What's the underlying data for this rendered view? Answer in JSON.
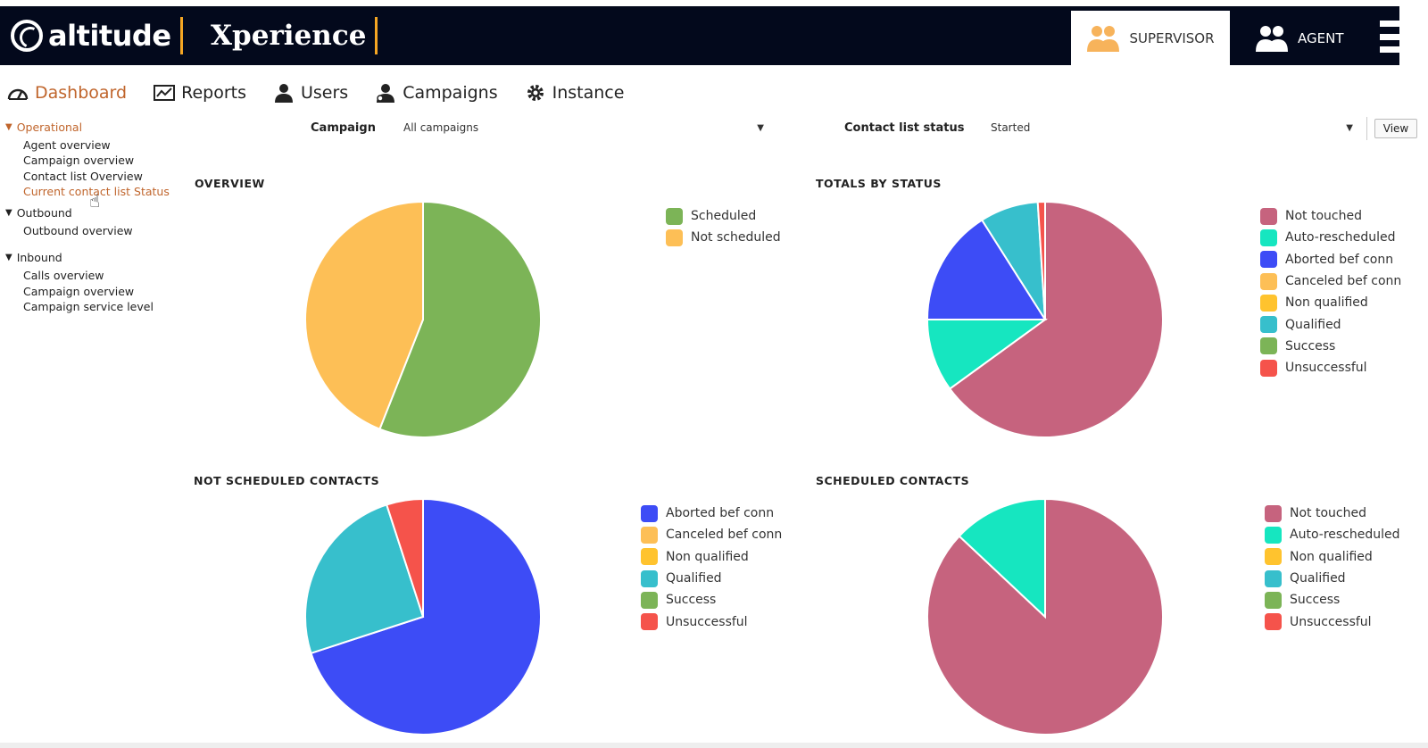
{
  "brand": {
    "logo_text": "altitude",
    "product": "Xperience"
  },
  "roles": {
    "supervisor": "SUPERVISOR",
    "agent": "AGENT"
  },
  "nav": {
    "dashboard": "Dashboard",
    "reports": "Reports",
    "users": "Users",
    "campaigns": "Campaigns",
    "instance": "Instance"
  },
  "sidebar": {
    "operational": {
      "label": "Operational",
      "items": [
        "Agent overview",
        "Campaign overview",
        "Contact list Overview",
        "Current contact list Status"
      ]
    },
    "outbound": {
      "label": "Outbound",
      "items": [
        "Outbound overview"
      ]
    },
    "inbound": {
      "label": "Inbound",
      "items": [
        "Calls overview",
        "Campaign overview",
        "Campaign service level"
      ]
    }
  },
  "filters": {
    "campaign_label": "Campaign",
    "campaign_value": "All campaigns",
    "status_label": "Contact list status",
    "status_value": "Started",
    "view_button": "View"
  },
  "colors": {
    "Scheduled": "#7cb457",
    "Not scheduled": "#fdbf56",
    "Not touched": "#c6637e",
    "Auto-rescheduled": "#16e6c0",
    "Aborted bef conn": "#3d4cf6",
    "Canceled bef conn": "#fdbf56",
    "Non qualified": "#ffc32e",
    "Qualified": "#37bfcc",
    "Success": "#7cb457",
    "Unsuccessful": "#f5534b",
    "topbar": "#03091c",
    "accent": "#c0652c"
  },
  "chart_data": [
    {
      "type": "pie",
      "title": "OVERVIEW",
      "legend": [
        "Scheduled",
        "Not scheduled"
      ],
      "slices": [
        {
          "label": "Scheduled",
          "value": 56
        },
        {
          "label": "Not scheduled",
          "value": 44
        }
      ]
    },
    {
      "type": "pie",
      "title": "TOTALS BY STATUS",
      "legend": [
        "Not touched",
        "Auto-rescheduled",
        "Aborted bef conn",
        "Canceled bef conn",
        "Non qualified",
        "Qualified",
        "Success",
        "Unsuccessful"
      ],
      "slices": [
        {
          "label": "Not touched",
          "value": 65
        },
        {
          "label": "Auto-rescheduled",
          "value": 10
        },
        {
          "label": "Aborted bef conn",
          "value": 16
        },
        {
          "label": "Qualified",
          "value": 8
        },
        {
          "label": "Unsuccessful",
          "value": 1
        }
      ]
    },
    {
      "type": "pie",
      "title": "NOT SCHEDULED CONTACTS",
      "legend": [
        "Aborted bef conn",
        "Canceled bef conn",
        "Non qualified",
        "Qualified",
        "Success",
        "Unsuccessful"
      ],
      "slices": [
        {
          "label": "Aborted bef conn",
          "value": 70
        },
        {
          "label": "Qualified",
          "value": 25
        },
        {
          "label": "Unsuccessful",
          "value": 5
        }
      ]
    },
    {
      "type": "pie",
      "title": "SCHEDULED CONTACTS",
      "legend": [
        "Not touched",
        "Auto-rescheduled",
        "Non qualified",
        "Qualified",
        "Success",
        "Unsuccessful"
      ],
      "slices": [
        {
          "label": "Not touched",
          "value": 87
        },
        {
          "label": "Auto-rescheduled",
          "value": 13
        }
      ]
    }
  ]
}
